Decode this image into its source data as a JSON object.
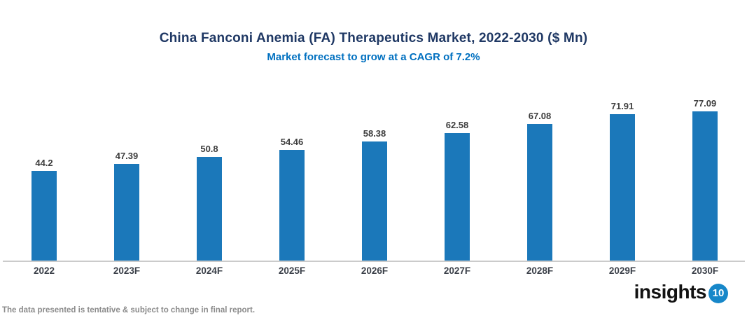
{
  "title": "China Fanconi Anemia (FA) Therapeutics Market, 2022-2030 ($ Mn)",
  "subtitle": "Market forecast to grow at a CAGR of 7.2%",
  "footer": {
    "disclaimer": "The data presented is tentative & subject to change in final report.",
    "logo_text": "insights",
    "logo_badge": "10"
  },
  "colors": {
    "bar": "#1B78BA",
    "title": "#1F3864",
    "subtitle": "#0070C0",
    "value_label": "#3D3D3D",
    "axis_label": "#3B4049",
    "axis_line": "#CBCBCB",
    "disclaimer": "#8B8B8B",
    "logo_badge_bg": "#1787C9"
  },
  "chart_data": {
    "type": "bar",
    "categories": [
      "2022",
      "2023F",
      "2024F",
      "2025F",
      "2026F",
      "2027F",
      "2028F",
      "2029F",
      "2030F"
    ],
    "values": [
      44.2,
      47.39,
      50.8,
      54.46,
      58.38,
      62.58,
      67.08,
      71.91,
      77.09
    ],
    "value_labels": [
      "44.2",
      "47.39",
      "50.8",
      "54.46",
      "58.38",
      "62.58",
      "67.08",
      "71.91",
      "77.09"
    ],
    "title": "China Fanconi Anemia (FA) Therapeutics Market, 2022-2030 ($ Mn)",
    "subtitle": "Market forecast to grow at a CAGR of 7.2%",
    "xlabel": "",
    "ylabel": "",
    "ylim": [
      0,
      80
    ],
    "grid": false,
    "legend": false,
    "bar_color": "#1B78BA"
  }
}
